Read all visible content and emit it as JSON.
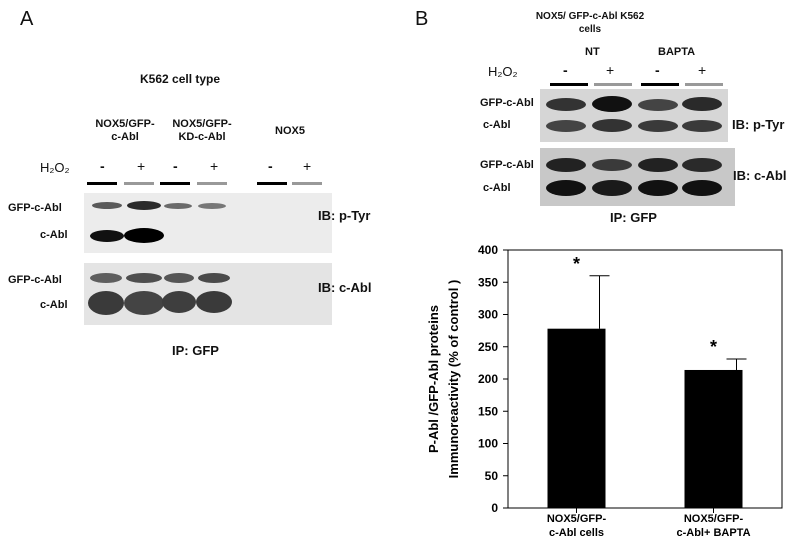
{
  "panel_a": {
    "letter": "A",
    "cell_type": "K562 cell type",
    "group_labels": [
      "NOX5/GFP-\nc-Abl",
      "NOX5/GFP-\nKD-c-Abl",
      "NOX5"
    ],
    "h2o2_label": "H₂O₂",
    "signs": [
      "-",
      "+",
      "-",
      "+",
      "-",
      "+"
    ],
    "ptyr_bands": [
      "GFP-c-Abl",
      "c-Abl"
    ],
    "cabl_bands": [
      "GFP-c-Abl",
      "c-Abl"
    ],
    "ib_ptyr": "IB: p-Tyr",
    "ib_cabl": "IB: c-Abl",
    "ip": "IP: GFP"
  },
  "panel_b": {
    "letter": "B",
    "cells_title": "NOX5/ GFP-c-Abl K562\ncells",
    "conditions": [
      "NT",
      "BAPTA"
    ],
    "h2o2_label": "H₂O₂",
    "signs": [
      "-",
      "+",
      "-",
      "+"
    ],
    "ptyr_bands": [
      "GFP-c-Abl",
      "c-Abl"
    ],
    "cabl_bands": [
      "GFP-c-Abl",
      "c-Abl"
    ],
    "ib_ptyr": "IB: p-Tyr",
    "ib_cabl": "IB: c-Abl",
    "ip": "IP: GFP"
  },
  "chart_data": {
    "type": "bar",
    "categories": [
      "NOX5/GFP-\nc-Abl cells",
      "NOX5/GFP-\nc-Abl+ BAPTA"
    ],
    "values": [
      278,
      214
    ],
    "errors": [
      82,
      17
    ],
    "annotations": [
      "*",
      "*"
    ],
    "ylabel": "P-Abl /GFP-Abl proteins\nImmunoreactivity (% of control )",
    "ylim": [
      0,
      400
    ],
    "yticks": [
      0,
      50,
      100,
      150,
      200,
      250,
      300,
      350,
      400
    ],
    "grid": false
  }
}
